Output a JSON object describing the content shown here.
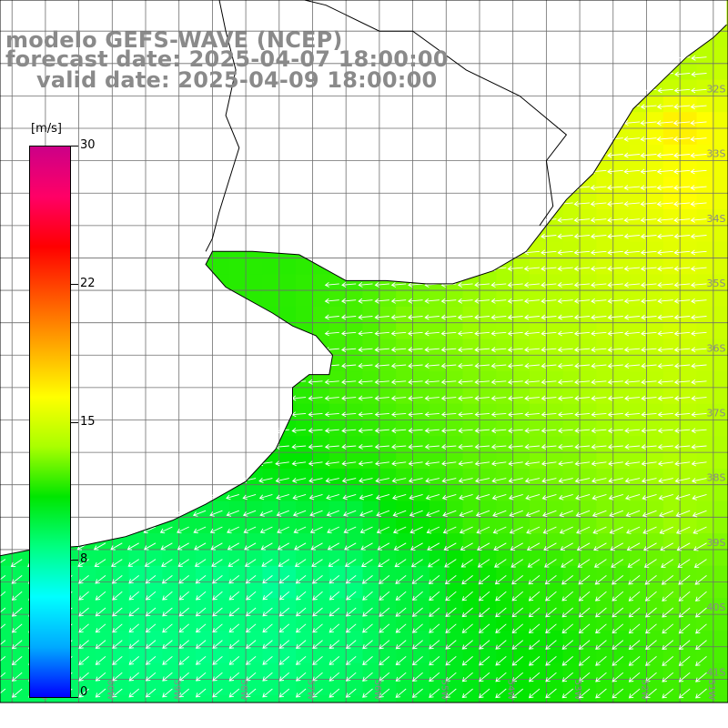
{
  "title": {
    "line1": "modelo GEFS-WAVE (NCEP)",
    "line2": "forecast date: 2025-04-07 18:00:00",
    "line3": "valid date: 2025-04-09 18:00:00"
  },
  "colorbar": {
    "unit": "[m/s]",
    "min": 0,
    "max": 30,
    "tick_labels": [
      "30",
      "22",
      "15",
      "8",
      "0"
    ],
    "tick_values": [
      30,
      22.5,
      15,
      7.5,
      0
    ],
    "stops": [
      "#0000ff",
      "#00aaff",
      "#00ffff",
      "#00ff80",
      "#00e600",
      "#aaff00",
      "#ffff00",
      "#ffaa00",
      "#ff5500",
      "#ff0000",
      "#ff0066",
      "#cc0088"
    ]
  },
  "map": {
    "lat_labels": [
      "32S",
      "33S",
      "34S",
      "35S",
      "36S",
      "37S",
      "38S",
      "39S",
      "40S",
      "41S"
    ],
    "lon_labels": [
      "61W",
      "60W",
      "59W",
      "58W",
      "57W",
      "56W",
      "55W",
      "54W",
      "53W",
      "52W",
      "51W"
    ],
    "land_color": "#ffffff",
    "grid_color": "#6e6e6e",
    "coast_color": "#000000",
    "arrow_color": "#ffffff",
    "wind_speed_note": "wind field values (m/s) sampled on a coarse grid, rows north to south, columns west to east",
    "wind_grid": {
      "lats": [
        -31.5,
        -32.5,
        -33.5,
        -34.5,
        -35.5,
        -36.5,
        -37.5,
        -38.5,
        -39.5,
        -40.5
      ],
      "lons": [
        -61.5,
        -60.5,
        -59.5,
        -58.5,
        -57.5,
        -56.5,
        -55.5,
        -54.5,
        -53.5,
        -52.5,
        -51.5
      ],
      "speeds": [
        [
          null,
          null,
          null,
          null,
          null,
          null,
          null,
          null,
          null,
          12,
          14
        ],
        [
          null,
          null,
          null,
          null,
          null,
          null,
          null,
          null,
          null,
          15.5,
          17
        ],
        [
          null,
          null,
          null,
          null,
          null,
          null,
          null,
          null,
          14.5,
          15.5,
          16.5
        ],
        [
          null,
          null,
          null,
          11.5,
          11.5,
          11.5,
          12.5,
          13.5,
          14.5,
          15,
          15.5
        ],
        [
          null,
          null,
          null,
          11.5,
          11.5,
          12,
          13,
          13.5,
          14,
          14.5,
          15
        ],
        [
          null,
          null,
          null,
          11.5,
          11.5,
          12,
          12.5,
          13,
          13.5,
          14,
          14.5
        ],
        [
          null,
          null,
          11,
          11,
          11,
          11.5,
          12,
          12.5,
          13,
          13.5,
          14
        ],
        [
          10.5,
          10,
          9.5,
          9.5,
          9.5,
          9.5,
          11,
          12,
          12.5,
          13,
          13.5
        ],
        [
          9,
          8.5,
          8,
          8,
          7.5,
          8,
          9.5,
          11,
          11.5,
          12,
          12.5
        ],
        [
          9,
          8.5,
          8,
          8,
          8,
          8.5,
          9.5,
          10.5,
          11,
          11.5,
          12
        ]
      ]
    }
  }
}
